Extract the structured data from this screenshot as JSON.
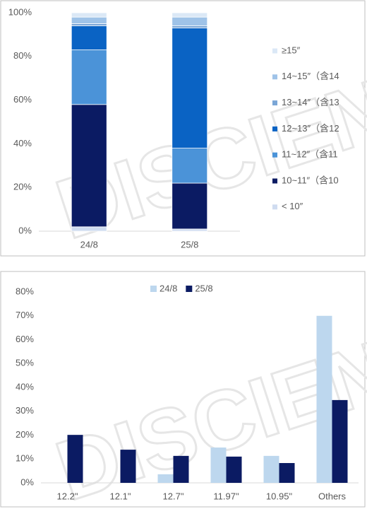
{
  "watermark": "DISCIEN",
  "chart_data": [
    {
      "type": "stacked_bar",
      "categories": [
        "24/8",
        "25/8"
      ],
      "series": [
        {
          "name": "< 10″",
          "color": "#cfdcf0",
          "values": [
            2,
            1
          ]
        },
        {
          "name": "10~11″（含10",
          "color": "#0b1b63",
          "values": [
            56,
            21
          ]
        },
        {
          "name": "11~12″（含11",
          "color": "#4b93d8",
          "values": [
            25,
            16
          ]
        },
        {
          "name": "12~13″（含12",
          "color": "#0a63c4",
          "values": [
            11,
            55
          ]
        },
        {
          "name": "13~14″（含13",
          "color": "#7aa6d6",
          "values": [
            1,
            1
          ]
        },
        {
          "name": "14~15″（含14",
          "color": "#9fc3e8",
          "values": [
            3,
            4
          ]
        },
        {
          "name": "≥15″",
          "color": "#dbe8f6",
          "values": [
            2,
            2
          ]
        }
      ],
      "ylim": [
        0,
        100
      ],
      "yticks": [
        {
          "value": 0,
          "label": "0%"
        },
        {
          "value": 20,
          "label": "20%"
        },
        {
          "value": 40,
          "label": "40%"
        },
        {
          "value": 60,
          "label": "60%"
        },
        {
          "value": 80,
          "label": "80%"
        },
        {
          "value": 100,
          "label": "100%"
        }
      ],
      "grid": false,
      "legend": "right"
    },
    {
      "type": "bar",
      "categories": [
        "12.2\"",
        "12.1\"",
        "12.7\"",
        "11.97\"",
        "10.95\"",
        "Others"
      ],
      "series": [
        {
          "name": "24/8",
          "color": "#bdd7ee",
          "values": [
            0,
            0,
            3.6,
            14.8,
            11.3,
            70
          ]
        },
        {
          "name": "25/8",
          "color": "#0b1b63",
          "values": [
            20.1,
            13.9,
            11.3,
            11,
            8.3,
            34.7
          ]
        }
      ],
      "ylim": [
        0,
        80
      ],
      "yticks": [
        {
          "value": 0,
          "label": "0%"
        },
        {
          "value": 10,
          "label": "10%"
        },
        {
          "value": 20,
          "label": "20%"
        },
        {
          "value": 30,
          "label": "30%"
        },
        {
          "value": 40,
          "label": "40%"
        },
        {
          "value": 50,
          "label": "50%"
        },
        {
          "value": 60,
          "label": "60%"
        },
        {
          "value": 70,
          "label": "70%"
        },
        {
          "value": 80,
          "label": "80%"
        }
      ],
      "grid": false,
      "legend": "top"
    }
  ]
}
